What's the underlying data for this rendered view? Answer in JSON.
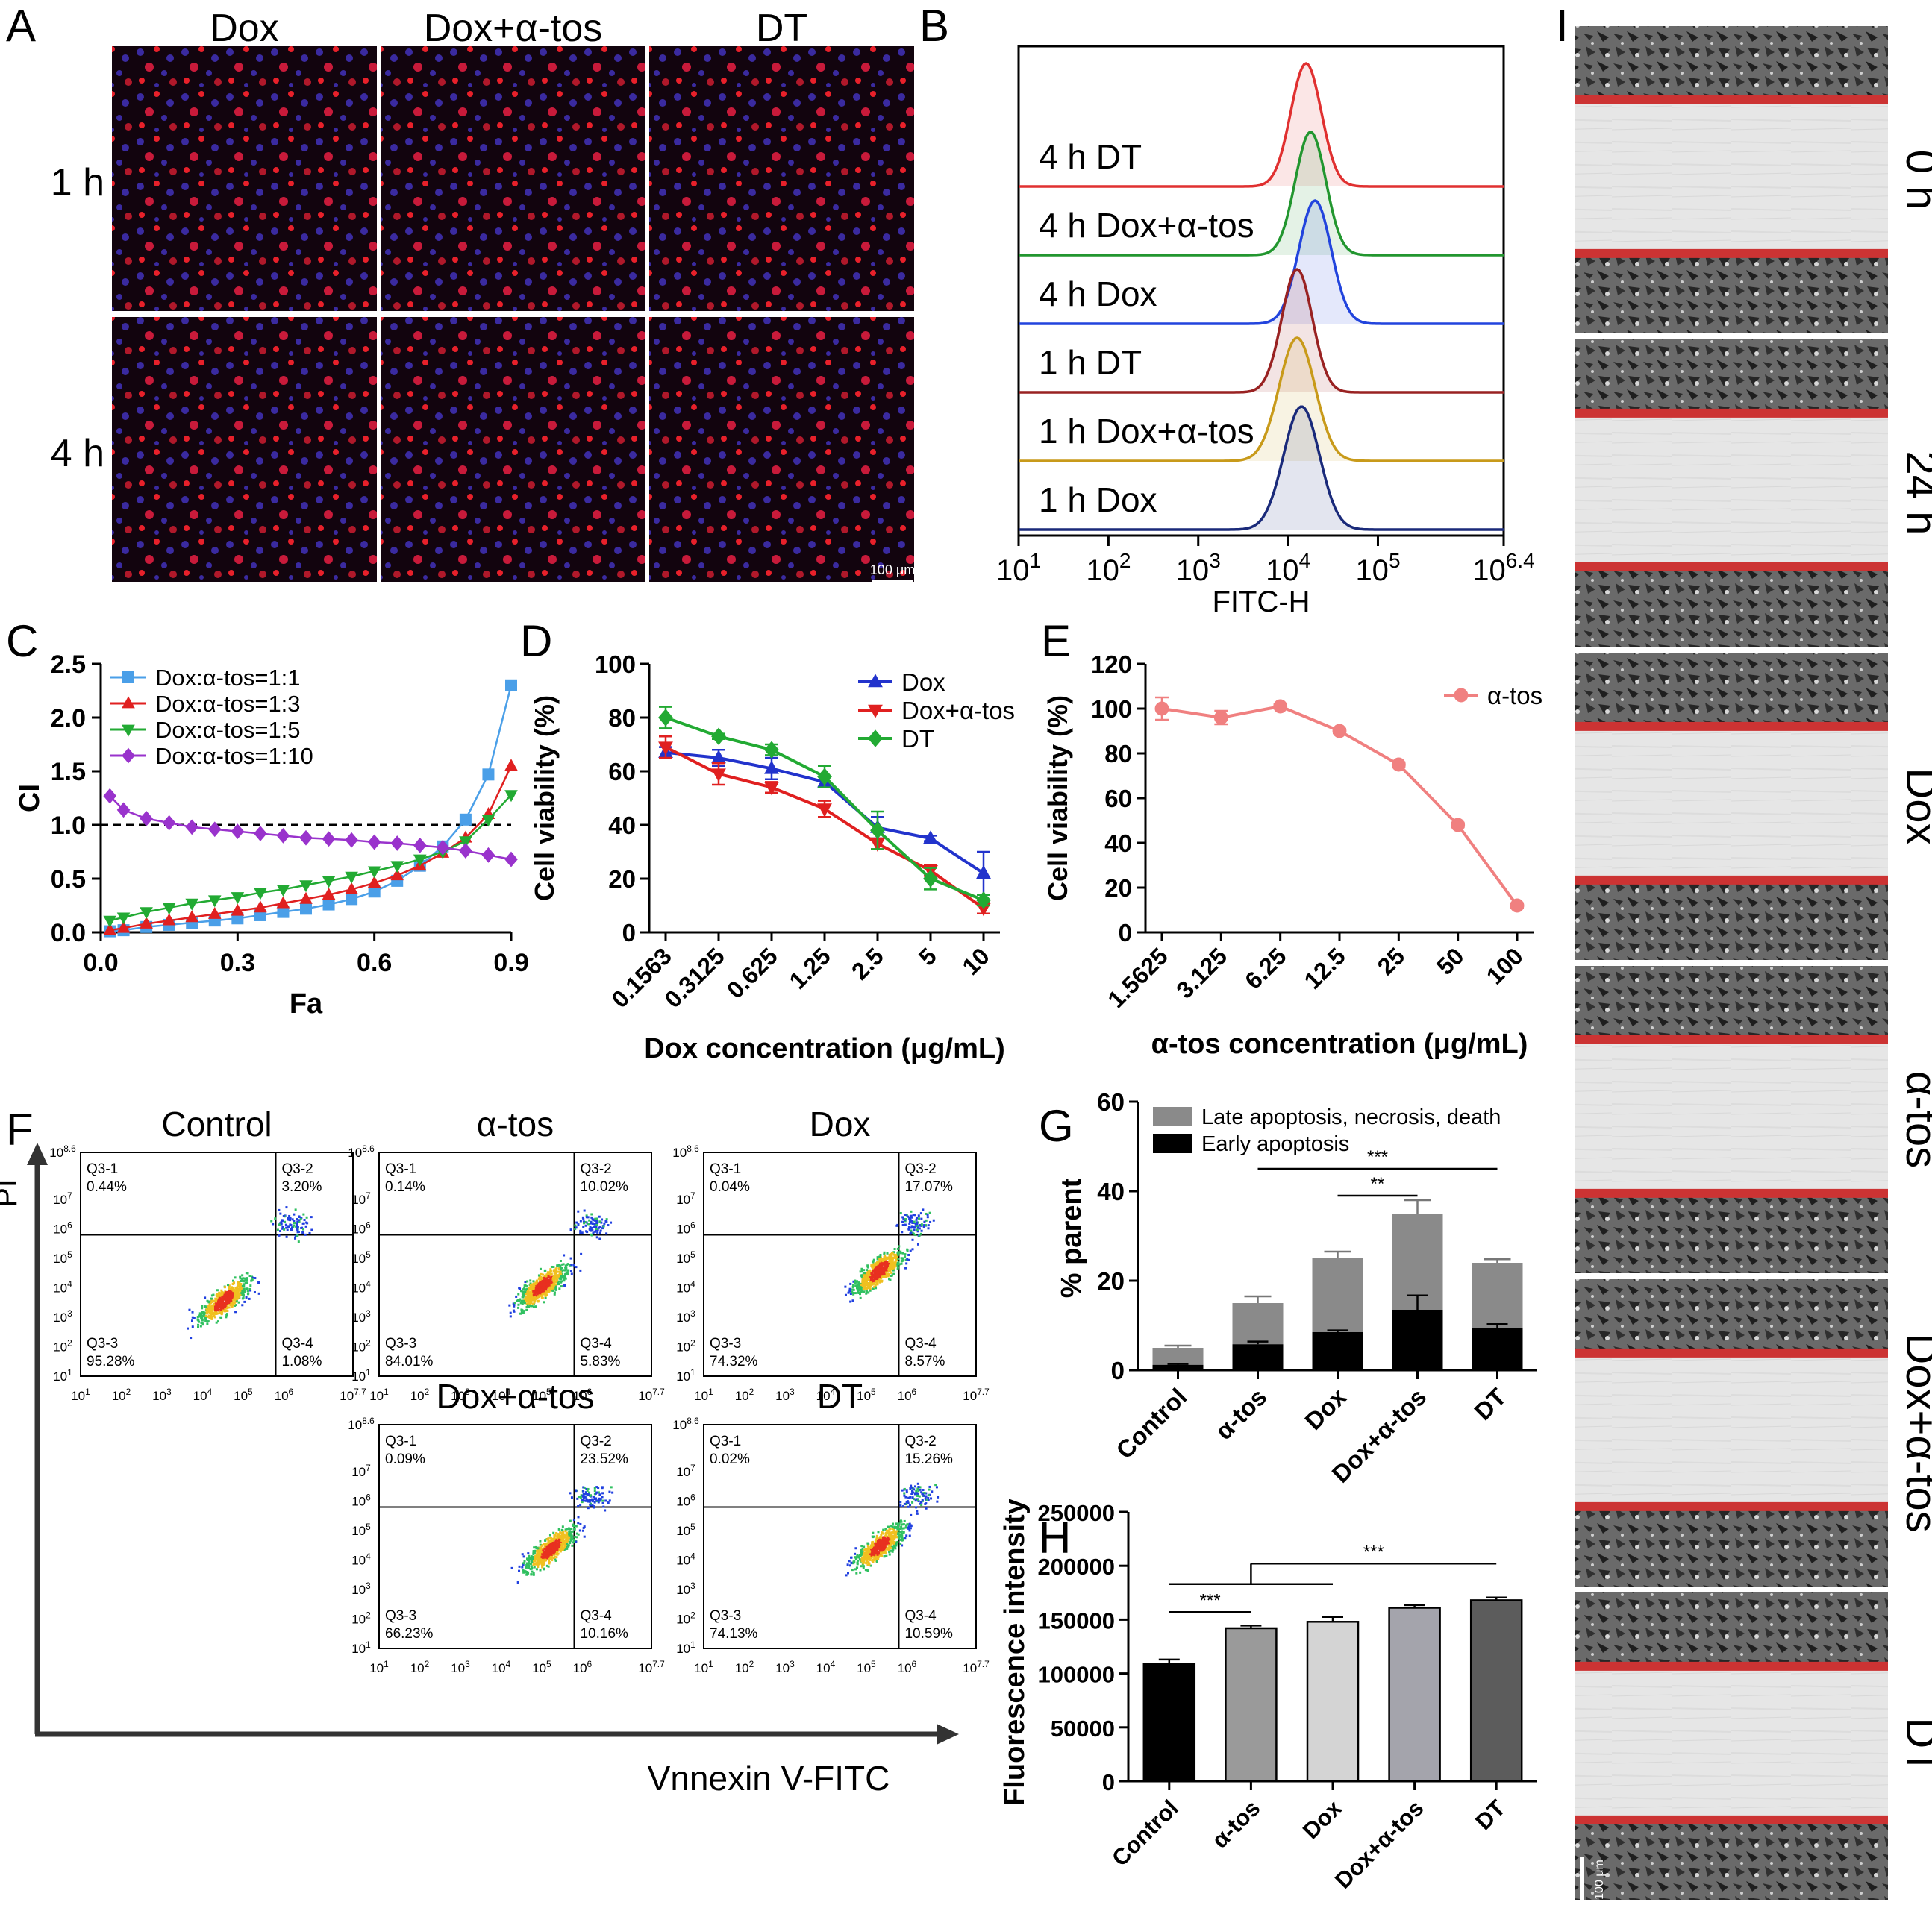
{
  "colors": {
    "dox_blue": "#2233cc",
    "combo_red": "#e02020",
    "dt_green": "#22aa33",
    "purple": "#9933cc",
    "light_blue": "#4a9fe8",
    "salmon": "#f08080",
    "late_gray": "#8a8a8a",
    "early_black": "#000000",
    "scratch_red": "#cc3333",
    "confocal_red": "#e8202a",
    "confocal_blue": "#3a2aa0"
  },
  "panel_letters": [
    "A",
    "B",
    "C",
    "D",
    "E",
    "F",
    "G",
    "H",
    "I"
  ],
  "panel_a": {
    "col_titles": [
      "Dox",
      "Dox+α-tos",
      "DT"
    ],
    "row_labels": [
      "1 h",
      "4 h"
    ],
    "scale_bar": "100 μm"
  },
  "chart_data": [
    {
      "panel": "B",
      "type": "area",
      "xlabel": "FITC-H",
      "x_scale": "log",
      "x_ticks": [
        "10^1",
        "10^2",
        "10^3",
        "10^4",
        "10^5",
        "10^6.4"
      ],
      "series": [
        {
          "name": "4 h DT",
          "peak_log": 4.2,
          "width": 0.17,
          "color": "#e03030"
        },
        {
          "name": "4 h Dox+α-tos",
          "peak_log": 4.25,
          "width": 0.17,
          "color": "#22962f"
        },
        {
          "name": "4 h Dox",
          "peak_log": 4.3,
          "width": 0.18,
          "color": "#2244dd"
        },
        {
          "name": "1 h DT",
          "peak_log": 4.1,
          "width": 0.17,
          "color": "#992222"
        },
        {
          "name": "1 h Dox+α-tos",
          "peak_log": 4.1,
          "width": 0.2,
          "color": "#c89a1a"
        },
        {
          "name": "1 h Dox",
          "peak_log": 4.15,
          "width": 0.2,
          "color": "#1a2a7a"
        }
      ]
    },
    {
      "panel": "C",
      "type": "line",
      "xlabel": "Fa",
      "ylabel": "CI",
      "xlim": [
        0,
        0.9
      ],
      "ylim": [
        0,
        2.5
      ],
      "x_ticks": [
        "0.0",
        "0.3",
        "0.6",
        "0.9"
      ],
      "y_ticks": [
        "0.0",
        "0.5",
        "1.0",
        "1.5",
        "2.0",
        "2.5"
      ],
      "reference_line": 1.0,
      "series": [
        {
          "name": "Dox:α-tos=1:1",
          "marker": "square",
          "color": "#4a9fe8",
          "x": [
            0.02,
            0.05,
            0.1,
            0.15,
            0.2,
            0.25,
            0.3,
            0.35,
            0.4,
            0.45,
            0.5,
            0.55,
            0.6,
            0.65,
            0.7,
            0.75,
            0.8,
            0.85,
            0.9
          ],
          "y": [
            0.01,
            0.02,
            0.05,
            0.07,
            0.09,
            0.11,
            0.13,
            0.16,
            0.19,
            0.22,
            0.26,
            0.31,
            0.38,
            0.48,
            0.62,
            0.8,
            1.05,
            1.47,
            2.3
          ]
        },
        {
          "name": "Dox:α-tos=1:3",
          "marker": "triangle-up",
          "color": "#e02020",
          "x": [
            0.02,
            0.05,
            0.1,
            0.15,
            0.2,
            0.25,
            0.3,
            0.35,
            0.4,
            0.45,
            0.5,
            0.55,
            0.6,
            0.65,
            0.7,
            0.75,
            0.8,
            0.85,
            0.9
          ],
          "y": [
            0.02,
            0.04,
            0.08,
            0.11,
            0.14,
            0.17,
            0.2,
            0.23,
            0.27,
            0.31,
            0.35,
            0.4,
            0.46,
            0.53,
            0.62,
            0.74,
            0.88,
            1.1,
            1.55
          ]
        },
        {
          "name": "Dox:α-tos=1:5",
          "marker": "triangle-down",
          "color": "#22aa33",
          "x": [
            0.02,
            0.05,
            0.1,
            0.15,
            0.2,
            0.25,
            0.3,
            0.35,
            0.4,
            0.45,
            0.5,
            0.55,
            0.6,
            0.65,
            0.7,
            0.75,
            0.8,
            0.85,
            0.9
          ],
          "y": [
            0.11,
            0.14,
            0.19,
            0.23,
            0.27,
            0.3,
            0.33,
            0.37,
            0.4,
            0.44,
            0.48,
            0.52,
            0.57,
            0.62,
            0.68,
            0.75,
            0.85,
            1.05,
            1.28
          ]
        },
        {
          "name": "Dox:α-tos=1:10",
          "marker": "diamond",
          "color": "#9933cc",
          "x": [
            0.02,
            0.05,
            0.1,
            0.15,
            0.2,
            0.25,
            0.3,
            0.35,
            0.4,
            0.45,
            0.5,
            0.55,
            0.6,
            0.65,
            0.7,
            0.75,
            0.8,
            0.85,
            0.9
          ],
          "y": [
            1.27,
            1.14,
            1.06,
            1.02,
            0.98,
            0.96,
            0.94,
            0.92,
            0.9,
            0.88,
            0.87,
            0.86,
            0.84,
            0.83,
            0.81,
            0.79,
            0.76,
            0.72,
            0.68
          ]
        }
      ]
    },
    {
      "panel": "D",
      "type": "line",
      "xlabel": "Dox concentration (μg/mL)",
      "ylabel": "Cell viability (%)",
      "ylim": [
        0,
        100
      ],
      "categories": [
        "0.1563",
        "0.3125",
        "0.625",
        "1.25",
        "2.5",
        "5",
        "10"
      ],
      "y_ticks": [
        "0",
        "20",
        "40",
        "60",
        "80",
        "100"
      ],
      "series": [
        {
          "name": "Dox",
          "marker": "triangle-up",
          "color": "#2233cc",
          "values": [
            67,
            65,
            61,
            56,
            39,
            35,
            22
          ],
          "err": [
            2,
            3,
            4,
            2,
            4,
            1,
            8
          ]
        },
        {
          "name": "Dox+α-tos",
          "marker": "triangle-down",
          "color": "#e02020",
          "values": [
            69,
            59,
            54,
            46,
            33,
            23,
            9
          ],
          "err": [
            4,
            4,
            2,
            3,
            2,
            2,
            2
          ]
        },
        {
          "name": "DT",
          "marker": "diamond",
          "color": "#22aa33",
          "values": [
            80,
            73,
            68,
            58,
            38,
            20,
            12
          ],
          "err": [
            4,
            1,
            2,
            4,
            7,
            4,
            2
          ]
        }
      ]
    },
    {
      "panel": "E",
      "type": "line",
      "xlabel": "α-tos concentration (μg/mL)",
      "ylabel": "Cell viability (%)",
      "ylim": [
        0,
        120
      ],
      "categories": [
        "1.5625",
        "3.125",
        "6.25",
        "12.5",
        "25",
        "50",
        "100"
      ],
      "y_ticks": [
        "0",
        "20",
        "40",
        "60",
        "80",
        "100",
        "120"
      ],
      "series": [
        {
          "name": "α-tos",
          "marker": "circle",
          "color": "#f08080",
          "values": [
            100,
            96,
            101,
            90,
            75,
            48,
            12
          ],
          "err": [
            5,
            3,
            1,
            1,
            1,
            1,
            1
          ]
        }
      ]
    },
    {
      "panel": "F",
      "type": "scatter",
      "xlabel": "Vnnexin V-FITC",
      "ylabel": "PI",
      "x_ticks": [
        "10^1",
        "10^2",
        "10^3",
        "10^4",
        "10^5",
        "10^6",
        "10^7.7"
      ],
      "y_ticks": [
        "10^1",
        "10^2",
        "10^3",
        "10^4",
        "10^5",
        "10^6",
        "10^7",
        "10^8.6"
      ],
      "plots": [
        {
          "title": "Control",
          "q1": "0.44%",
          "q2": "3.20%",
          "q3": "95.28%",
          "q4": "1.08%",
          "cx": 4.5,
          "cy": 3.6
        },
        {
          "title": "α-tos",
          "q1": "0.14%",
          "q2": "10.02%",
          "q3": "84.01%",
          "q4": "5.83%",
          "cx": 5.0,
          "cy": 4.1
        },
        {
          "title": "Dox",
          "q1": "0.04%",
          "q2": "17.07%",
          "q3": "74.32%",
          "q4": "8.57%",
          "cx": 5.3,
          "cy": 4.6
        },
        {
          "title": "Dox+α-tos",
          "q1": "0.09%",
          "q2": "23.52%",
          "q3": "66.23%",
          "q4": "10.16%",
          "cx": 5.2,
          "cy": 4.4
        },
        {
          "title": "DT",
          "q1": "0.02%",
          "q2": "15.26%",
          "q3": "74.13%",
          "q4": "10.59%",
          "cx": 5.3,
          "cy": 4.5
        }
      ],
      "quadrant_labels": [
        "Q3-1",
        "Q3-2",
        "Q3-3",
        "Q3-4"
      ]
    },
    {
      "panel": "G",
      "type": "bar",
      "ylabel": "% parent",
      "ylim": [
        0,
        60
      ],
      "y_ticks": [
        "0",
        "20",
        "40",
        "60"
      ],
      "categories": [
        "Control",
        "α-tos",
        "Dox",
        "Dox+α-tos",
        "DT"
      ],
      "series": [
        {
          "name": "Early apoptosis",
          "color": "#000000",
          "values": [
            1.2,
            5.8,
            8.5,
            13.5,
            9.5
          ],
          "err": [
            0.2,
            0.6,
            0.4,
            3.2,
            0.8
          ]
        },
        {
          "name": "Late apoptosis, necrosis, death",
          "color": "#8a8a8a",
          "values": [
            3.8,
            9.2,
            16.5,
            21.5,
            14.5
          ],
          "err": [
            0.5,
            1.5,
            1.5,
            3,
            0.8
          ]
        }
      ],
      "significance": [
        {
          "from": "α-tos",
          "to": "DT",
          "label": "***",
          "y": 45
        },
        {
          "from": "Dox",
          "to": "Dox+α-tos",
          "label": "**",
          "y": 39
        }
      ]
    },
    {
      "panel": "H",
      "type": "bar",
      "ylabel": "Fluorescence intensity",
      "ylim": [
        0,
        250000
      ],
      "y_ticks": [
        "0",
        "50000",
        "100000",
        "150000",
        "200000",
        "250000"
      ],
      "categories": [
        "Control",
        "α-tos",
        "Dox",
        "Dox+α-tos",
        "DT"
      ],
      "values": [
        109000,
        142000,
        148000,
        161000,
        168000
      ],
      "err": [
        4000,
        2500,
        4500,
        2500,
        2500
      ],
      "colors": [
        "#000000",
        "#9a9a9a",
        "#d4d4d4",
        "#a4a4ac",
        "#5c5c5c"
      ],
      "significance": [
        {
          "from": "Control",
          "to": "α-tos",
          "label": "***",
          "y": 157000
        },
        {
          "from": "Control",
          "to": "Dox",
          "label": "",
          "y": 183000
        },
        {
          "from": "α-tos",
          "to": "DT",
          "label": "***",
          "y": 202000
        }
      ]
    }
  ],
  "panel_i": {
    "labels": [
      "0 h",
      "24 h",
      "Dox",
      "α-tos",
      "Dox+α-tos",
      "DT"
    ],
    "scale_bar": "100 μm"
  }
}
